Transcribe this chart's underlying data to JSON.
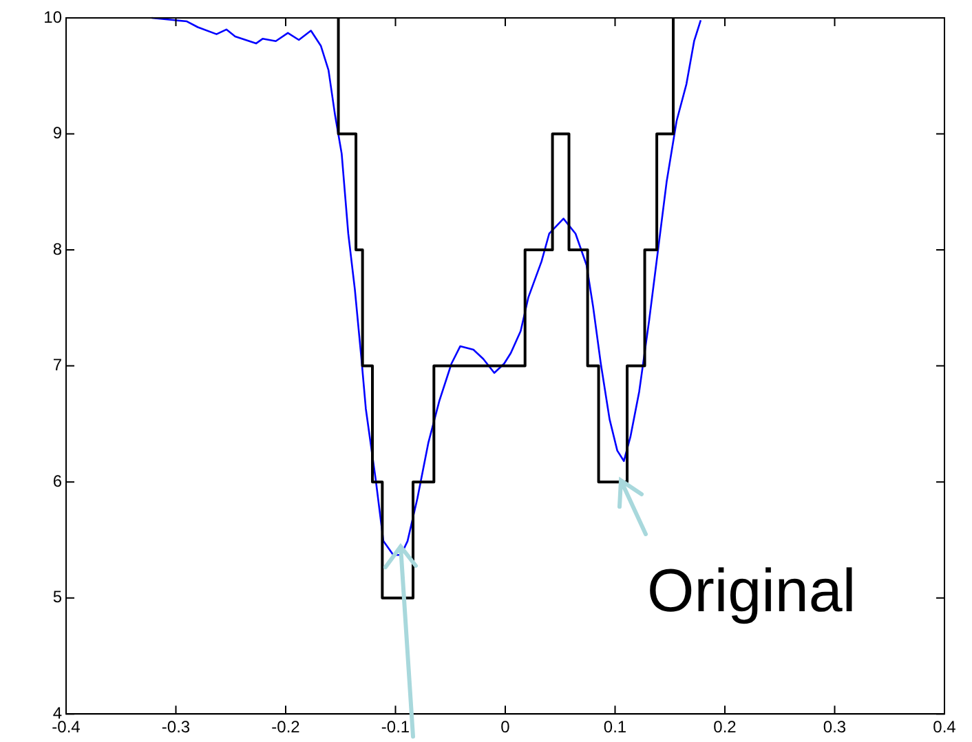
{
  "chart_data": {
    "type": "line",
    "xlim": [
      -0.4,
      0.4
    ],
    "ylim": [
      4,
      10
    ],
    "xticks": [
      -0.4,
      -0.3,
      -0.2,
      -0.1,
      0,
      0.1,
      0.2,
      0.3,
      0.4
    ],
    "yticks": [
      4,
      5,
      6,
      7,
      8,
      9,
      10
    ],
    "grid": false,
    "legend": false,
    "marker": "none",
    "line_style": "solid",
    "series": [
      {
        "type": "step",
        "color": "#000000",
        "x": [
          -0.152,
          -0.152,
          -0.136,
          -0.13,
          -0.121,
          -0.112,
          -0.084,
          -0.065,
          0.018,
          0.043,
          0.058,
          0.075,
          0.085,
          0.111,
          0.127,
          0.138,
          0.153
        ],
        "values": [
          10,
          9,
          8,
          7,
          6,
          5,
          6,
          7,
          8,
          9,
          8,
          7,
          6,
          7,
          8,
          9,
          10
        ]
      },
      {
        "type": "line",
        "color": "#0000ff",
        "x": [
          -0.322,
          -0.29,
          -0.28,
          -0.263,
          -0.254,
          -0.246,
          -0.227,
          -0.221,
          -0.209,
          -0.198,
          -0.188,
          -0.177,
          -0.168,
          -0.161,
          -0.155,
          -0.149,
          -0.143,
          -0.137,
          -0.131,
          -0.127,
          -0.118,
          -0.111,
          -0.102,
          -0.095,
          -0.089,
          -0.08,
          -0.07,
          -0.06,
          -0.049,
          -0.041,
          -0.029,
          -0.02,
          -0.01,
          -0.001,
          0.005,
          0.014,
          0.021,
          0.033,
          0.04,
          0.053,
          0.064,
          0.074,
          0.08,
          0.087,
          0.095,
          0.102,
          0.108,
          0.114,
          0.122,
          0.131,
          0.139,
          0.147,
          0.156,
          0.165,
          0.172,
          0.178
        ],
        "values": [
          10,
          9.97,
          9.92,
          9.86,
          9.9,
          9.84,
          9.78,
          9.82,
          9.8,
          9.87,
          9.81,
          9.89,
          9.76,
          9.55,
          9.16,
          8.83,
          8.14,
          7.66,
          7.06,
          6.63,
          6.02,
          5.49,
          5.37,
          5.37,
          5.49,
          5.86,
          6.34,
          6.7,
          7.02,
          7.17,
          7.14,
          7.06,
          6.94,
          7.02,
          7.11,
          7.3,
          7.59,
          7.9,
          8.14,
          8.27,
          8.14,
          7.87,
          7.51,
          7.02,
          6.54,
          6.27,
          6.18,
          6.39,
          6.78,
          7.39,
          7.99,
          8.59,
          9.11,
          9.43,
          9.8,
          9.98
        ]
      }
    ],
    "annotations": [
      "Original"
    ]
  }
}
